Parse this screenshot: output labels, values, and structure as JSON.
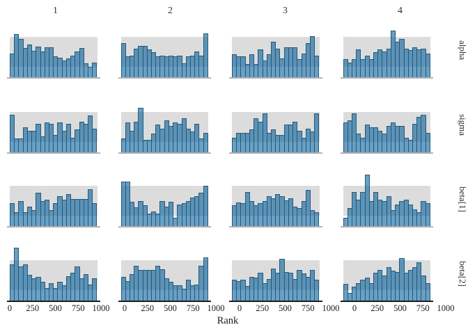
{
  "chart_data": {
    "type": "bar",
    "subtype": "mcmc-rank-histogram-grid",
    "title": "",
    "columns": [
      "1",
      "2",
      "3",
      "4"
    ],
    "rows": [
      "alpha",
      "sigma",
      "beta[1]",
      "beta[2]"
    ],
    "x": {
      "label": "Rank",
      "ticks": [
        "0",
        "250",
        "500",
        "750",
        "1000"
      ],
      "range": [
        0,
        1000
      ]
    },
    "bins_per_panel": 20,
    "height_unit": "bar heights are relative to the top edge of the gray uniformity band (band top = 1.0, band bottom = 0.27)",
    "band": {
      "bottom_rel": 0.27,
      "top_rel": 1.0
    },
    "grid": false,
    "legend": "none",
    "panels": [
      {
        "row": "alpha",
        "chain": "1",
        "bar_heights": [
          0.6,
          1.07,
          0.95,
          0.73,
          0.82,
          0.67,
          0.77,
          0.65,
          0.75,
          0.75,
          0.52,
          0.5,
          0.42,
          0.48,
          0.55,
          0.65,
          0.73,
          0.35,
          0.28,
          0.38
        ]
      },
      {
        "row": "alpha",
        "chain": "2",
        "bar_heights": [
          0.85,
          0.52,
          0.55,
          0.72,
          0.78,
          0.78,
          0.7,
          0.62,
          0.52,
          0.55,
          0.52,
          0.55,
          0.52,
          0.55,
          0.35,
          0.52,
          0.55,
          0.65,
          0.55,
          1.08
        ]
      },
      {
        "row": "alpha",
        "chain": "3",
        "bar_heights": [
          0.58,
          0.53,
          0.53,
          0.34,
          0.58,
          0.34,
          0.7,
          0.43,
          0.58,
          0.88,
          0.72,
          0.48,
          0.75,
          0.75,
          0.75,
          0.45,
          0.6,
          0.85,
          1.02,
          0.55
        ]
      },
      {
        "row": "alpha",
        "chain": "4",
        "bar_heights": [
          0.45,
          0.38,
          0.45,
          0.7,
          0.45,
          0.55,
          0.45,
          0.62,
          0.7,
          0.65,
          0.72,
          1.15,
          0.88,
          0.95,
          0.72,
          0.68,
          0.75,
          0.7,
          0.72,
          0.6
        ]
      },
      {
        "row": "sigma",
        "chain": "1",
        "bar_heights": [
          0.93,
          0.36,
          0.36,
          0.63,
          0.55,
          0.55,
          0.71,
          0.41,
          0.74,
          0.71,
          0.44,
          0.74,
          0.55,
          0.71,
          0.38,
          0.58,
          0.77,
          0.71,
          0.91,
          0.6
        ]
      },
      {
        "row": "sigma",
        "chain": "2",
        "bar_heights": [
          0.36,
          0.74,
          0.55,
          0.77,
          1.1,
          0.33,
          0.33,
          0.47,
          0.69,
          0.6,
          0.8,
          0.66,
          0.74,
          0.71,
          0.85,
          0.6,
          0.52,
          0.71,
          0.36,
          0.49
        ]
      },
      {
        "row": "sigma",
        "chain": "3",
        "bar_heights": [
          0.38,
          0.49,
          0.49,
          0.49,
          0.58,
          0.85,
          0.77,
          0.96,
          0.49,
          0.58,
          0.44,
          0.44,
          0.69,
          0.69,
          0.77,
          0.55,
          0.38,
          0.6,
          0.52,
          0.96
        ]
      },
      {
        "row": "sigma",
        "chain": "4",
        "bar_heights": [
          0.74,
          0.8,
          0.96,
          0.47,
          0.38,
          0.69,
          0.62,
          0.62,
          0.55,
          0.47,
          0.66,
          0.74,
          0.66,
          0.66,
          0.38,
          0.33,
          0.71,
          0.88,
          0.93,
          0.49
        ]
      },
      {
        "row": "beta[1]",
        "chain": "1",
        "bar_heights": [
          0.58,
          0.35,
          0.63,
          0.35,
          0.49,
          0.41,
          0.83,
          0.63,
          0.66,
          0.41,
          0.58,
          0.75,
          0.66,
          0.8,
          0.68,
          0.68,
          0.68,
          0.68,
          0.92,
          0.58
        ]
      },
      {
        "row": "beta[1]",
        "chain": "2",
        "bar_heights": [
          1.11,
          1.11,
          0.61,
          0.47,
          0.63,
          0.52,
          0.33,
          0.38,
          0.33,
          0.63,
          0.49,
          0.61,
          0.22,
          0.55,
          0.58,
          0.63,
          0.72,
          0.75,
          0.83,
          1.0
        ]
      },
      {
        "row": "beta[1]",
        "chain": "3",
        "bar_heights": [
          0.52,
          0.6,
          0.57,
          0.85,
          0.62,
          0.52,
          0.57,
          0.62,
          0.74,
          0.7,
          0.8,
          0.74,
          0.65,
          0.7,
          0.5,
          0.45,
          0.62,
          0.9,
          0.4,
          0.35
        ]
      },
      {
        "row": "beta[1]",
        "chain": "4",
        "bar_heights": [
          0.22,
          0.45,
          0.85,
          0.67,
          0.85,
          1.28,
          0.63,
          0.85,
          0.67,
          0.62,
          0.74,
          0.4,
          0.55,
          0.62,
          0.67,
          0.55,
          0.42,
          0.35,
          0.62,
          0.57
        ]
      },
      {
        "row": "beta[2]",
        "chain": "1",
        "bar_heights": [
          0.9,
          1.3,
          0.84,
          0.9,
          0.64,
          0.56,
          0.59,
          0.47,
          0.33,
          0.44,
          0.33,
          0.47,
          0.39,
          0.61,
          0.7,
          0.84,
          0.56,
          0.67,
          0.41,
          0.56
        ]
      },
      {
        "row": "beta[2]",
        "chain": "2",
        "bar_heights": [
          0.59,
          0.5,
          0.67,
          0.87,
          0.76,
          0.76,
          0.76,
          0.76,
          0.87,
          0.78,
          0.56,
          0.47,
          0.39,
          0.39,
          0.3,
          0.53,
          0.39,
          0.41,
          0.87,
          1.07
        ]
      },
      {
        "row": "beta[2]",
        "chain": "3",
        "bar_heights": [
          0.53,
          0.49,
          0.53,
          0.38,
          0.6,
          0.58,
          0.69,
          0.44,
          0.55,
          0.8,
          0.7,
          1.03,
          0.72,
          0.69,
          0.55,
          0.77,
          0.68,
          0.59,
          0.76,
          0.53
        ]
      },
      {
        "row": "beta[2]",
        "chain": "4",
        "bar_heights": [
          0.42,
          0.2,
          0.35,
          0.44,
          0.52,
          0.58,
          0.44,
          0.69,
          0.77,
          0.63,
          0.83,
          0.75,
          0.72,
          1.06,
          0.69,
          0.76,
          0.83,
          0.95,
          0.63,
          0.44
        ]
      }
    ],
    "colors": {
      "band": "#dcdcdc",
      "bar_fill": "rgba(5,96,156,0.60)",
      "bar_border": "#245878",
      "inner_axis_line": "#b3b3b3",
      "bottom_axis_line": "#1c1c1c",
      "text": "#262626"
    }
  }
}
